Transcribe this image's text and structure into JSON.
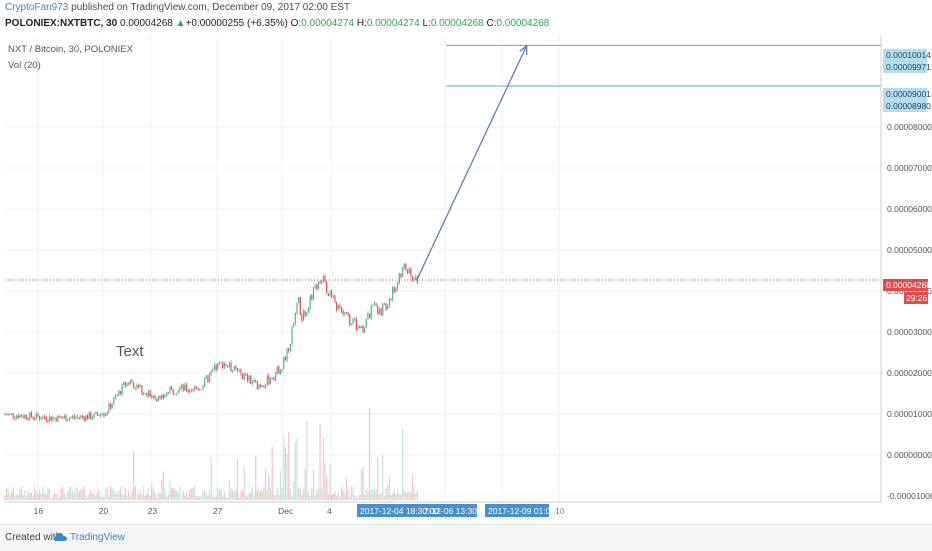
{
  "header": {
    "author": "CryptoFan973",
    "published": " published on TradingView.com, December 09, 2017 02:00 EST",
    "symbol": "POLONIEX:NXTBTC, 30",
    "price": "0.00004268",
    "change_arrow": "▲",
    "change": "+0.00000255 (+6.35%)",
    "o_label": "O:",
    "o_value": "0.00004274",
    "h_label": "H:",
    "h_value": "0.00004274",
    "l_label": "L:",
    "l_value": "0.00004268",
    "c_label": "C:",
    "c_value": "0.00004268"
  },
  "legend": {
    "series": "NXT / Bitcoin, 30, POLONIEX",
    "volume": "Vol (20)"
  },
  "annotation_text": "Text",
  "price_labels": {
    "current": "0.00004268",
    "countdown": "29:26",
    "h1_top": "0.00010014",
    "h1_bottom": "0.00009971",
    "h2_top": "0.00009001",
    "h2_bottom": "0.00008980"
  },
  "time_labels": {
    "marker1": "2017-12-04 18:30:00",
    "marker2": "7-12-06 13:30:00",
    "marker3": "2017-12-09 01:00:00"
  },
  "footer": {
    "created_with": "Created with",
    "brand": "TradingView"
  },
  "colors": {
    "up": "#53b987",
    "down": "#eb4d5c",
    "hline": "#5fa8d3",
    "arrow": "#5b7fb3",
    "price_line": "#e04b4b"
  },
  "chart_data": {
    "type": "line",
    "title": "NXT / Bitcoin, 30, POLONIEX",
    "xlabel": "",
    "ylabel": "",
    "y_axis": {
      "ticks": [
        "-0.00001000",
        "0.00000000",
        "0.00001000",
        "0.00002000",
        "0.00003000",
        "0.00004000",
        "0.00005000",
        "0.00006000",
        "0.00007000",
        "0.00008000"
      ],
      "range": [
        -1.1e-05,
        0.000107
      ]
    },
    "x_axis": {
      "ticks": [
        "16",
        "20",
        "23",
        "27",
        "Dec",
        "4",
        "18"
      ],
      "range_days": [
        14,
        19
      ]
    },
    "grid": true,
    "price_path": [
      [
        14.0,
        9.9e-06
      ],
      [
        15.0,
        9.6e-06
      ],
      [
        16.0,
        9.3e-06
      ],
      [
        17.0,
        9e-06
      ],
      [
        18.5,
        9.2e-06
      ],
      [
        19.5,
        9.5e-06
      ],
      [
        20.2,
        1.05e-05
      ],
      [
        20.8,
        1.4e-05
      ],
      [
        21.3,
        1.7e-05
      ],
      [
        21.7,
        1.8e-05
      ],
      [
        22.3,
        1.6e-05
      ],
      [
        23.0,
        1.45e-05
      ],
      [
        23.5,
        1.38e-05
      ],
      [
        24.0,
        1.53e-05
      ],
      [
        24.7,
        1.63e-05
      ],
      [
        25.3,
        1.6e-05
      ],
      [
        26.0,
        1.65e-05
      ],
      [
        26.5,
        1.9e-05
      ],
      [
        27.0,
        2.15e-05
      ],
      [
        27.4,
        2.25e-05
      ],
      [
        28.0,
        2.08e-05
      ],
      [
        28.5,
        1.96e-05
      ],
      [
        29.0,
        1.82e-05
      ],
      [
        29.5,
        1.7e-05
      ],
      [
        30.0,
        1.78e-05
      ],
      [
        30.5,
        1.95e-05
      ],
      [
        31.0,
        2.2e-05
      ],
      [
        31.4,
        2.6e-05
      ],
      [
        31.8,
        3.4e-05
      ],
      [
        32.0,
        3.8e-05
      ],
      [
        32.2,
        3.3e-05
      ],
      [
        32.5,
        3.55e-05
      ],
      [
        32.8,
        3.9e-05
      ],
      [
        33.2,
        4.15e-05
      ],
      [
        33.5,
        4.3e-05
      ],
      [
        33.8,
        4e-05
      ],
      [
        34.2,
        3.7e-05
      ],
      [
        34.6,
        3.5e-05
      ],
      [
        35.0,
        3.35e-05
      ],
      [
        35.5,
        3.2e-05
      ],
      [
        35.8,
        3e-05
      ],
      [
        36.2,
        3.3e-05
      ],
      [
        36.6,
        3.6e-05
      ],
      [
        37.0,
        3.5e-05
      ],
      [
        37.4,
        3.7e-05
      ],
      [
        37.8,
        4e-05
      ],
      [
        38.2,
        4.3e-05
      ],
      [
        38.5,
        4.6e-05
      ],
      [
        38.8,
        4.4e-05
      ],
      [
        39.0,
        4.25e-05
      ],
      [
        39.3,
        4.268e-05
      ]
    ],
    "volume_series": "Vol (20)",
    "annotations": {
      "current_price": 4.268e-05,
      "horizontal_lines": [
        9.99e-05,
        9e-05
      ],
      "arrow_from": [
        39.3,
        4.3e-05
      ],
      "arrow_to": [
        46.0,
        9.98e-05
      ],
      "text": "Text"
    }
  }
}
